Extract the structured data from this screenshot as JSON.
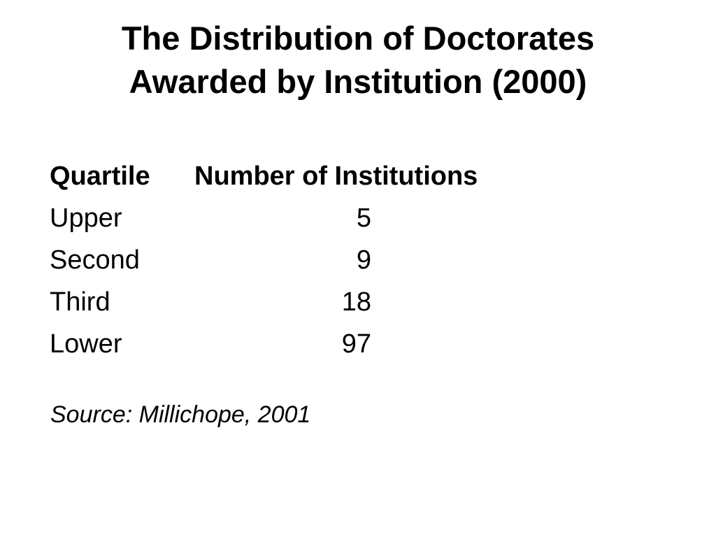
{
  "slide": {
    "title_line1": "The Distribution of Doctorates",
    "title_line2": "Awarded by Institution (2000)",
    "table": {
      "headers": [
        "Quartile",
        "Number of Institutions"
      ],
      "rows": [
        {
          "quartile": "Upper",
          "number": "5"
        },
        {
          "quartile": "Second",
          "number": "9"
        },
        {
          "quartile": "Third",
          "number": "18"
        },
        {
          "quartile": "Lower",
          "number": "97"
        }
      ]
    },
    "source": "Source: Millichope, 2001"
  }
}
